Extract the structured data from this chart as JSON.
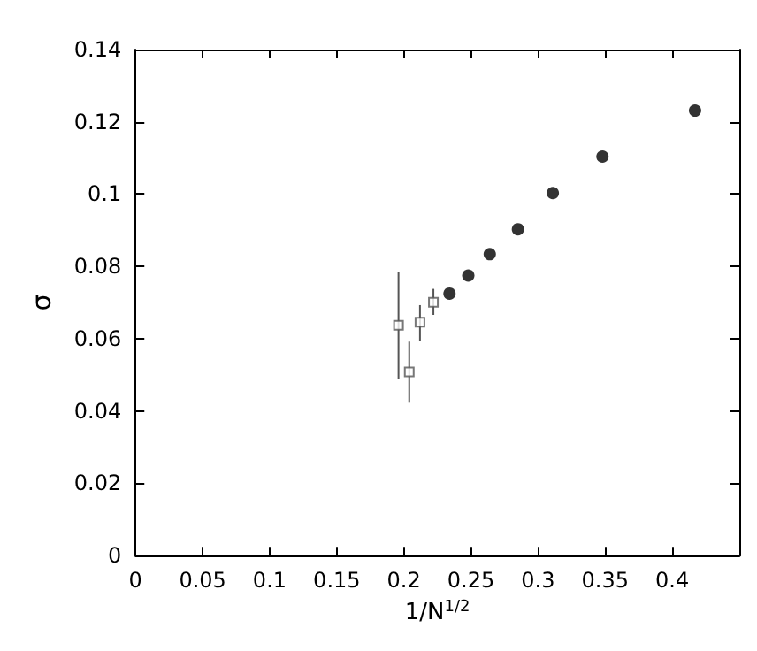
{
  "chart_data": {
    "type": "scatter",
    "xlabel": "1/N$^{1/2}$",
    "ylabel": "σ",
    "xlim": [
      0,
      0.45
    ],
    "xticks": [
      0,
      0.05,
      0.1,
      0.15,
      0.2,
      0.25,
      0.3,
      0.35,
      0.4
    ],
    "ylim": [
      0,
      0.14
    ],
    "yticks": [
      0,
      0.02,
      0.04,
      0.06,
      0.08,
      0.1,
      0.12,
      0.14
    ],
    "grid": false,
    "series": [
      {
        "color": "#000000",
        "marker": "circle",
        "x": [
          0.234,
          0.248,
          0.264,
          0.285,
          0.311,
          0.348,
          0.417
        ],
        "values": [
          0.0725,
          0.0775,
          0.0834,
          0.0903,
          0.1003,
          0.1104,
          0.1231
        ]
      },
      {
        "color": "#555555",
        "marker": "square",
        "x": [
          0.196,
          0.204,
          0.212,
          0.222
        ],
        "values": [
          0.0637,
          0.0508,
          0.0646,
          0.0701
        ],
        "errors": [
          [
            0.0488,
            0.0784
          ],
          [
            0.0423,
            0.0592
          ],
          [
            0.0594,
            0.0693
          ],
          [
            0.0666,
            0.0738
          ]
        ]
      }
    ]
  }
}
